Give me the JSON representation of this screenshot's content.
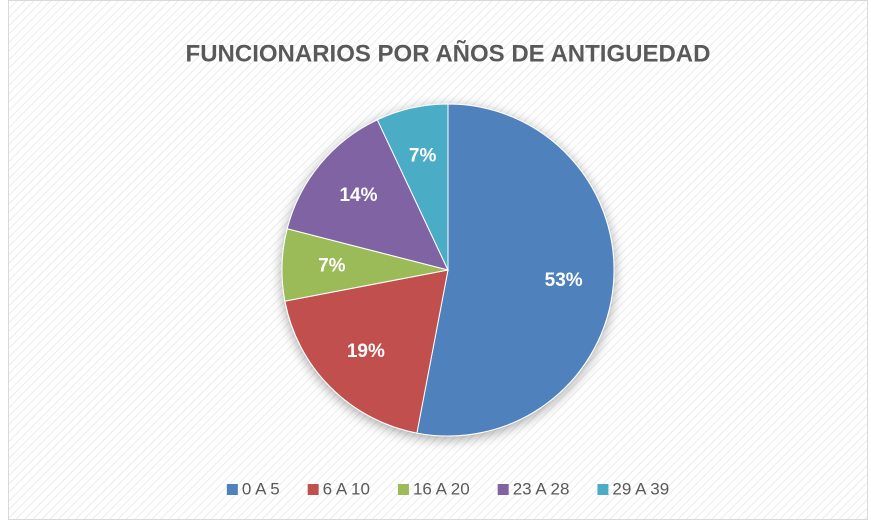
{
  "chart_data": {
    "type": "pie",
    "title": "FUNCIONARIOS POR AÑOS DE ANTIGUEDAD",
    "categories": [
      "0 A 5",
      "6 A 10",
      "16 A 20",
      "23 A 28",
      "29 A 39"
    ],
    "values": [
      53,
      19,
      7,
      14,
      7
    ],
    "value_labels": [
      "53%",
      "19%",
      "7%",
      "14%",
      "7%"
    ],
    "colors": [
      "#4f81bd",
      "#c0504d",
      "#9bbb59",
      "#8064a2",
      "#4bacc6"
    ],
    "legend": "bottom"
  }
}
